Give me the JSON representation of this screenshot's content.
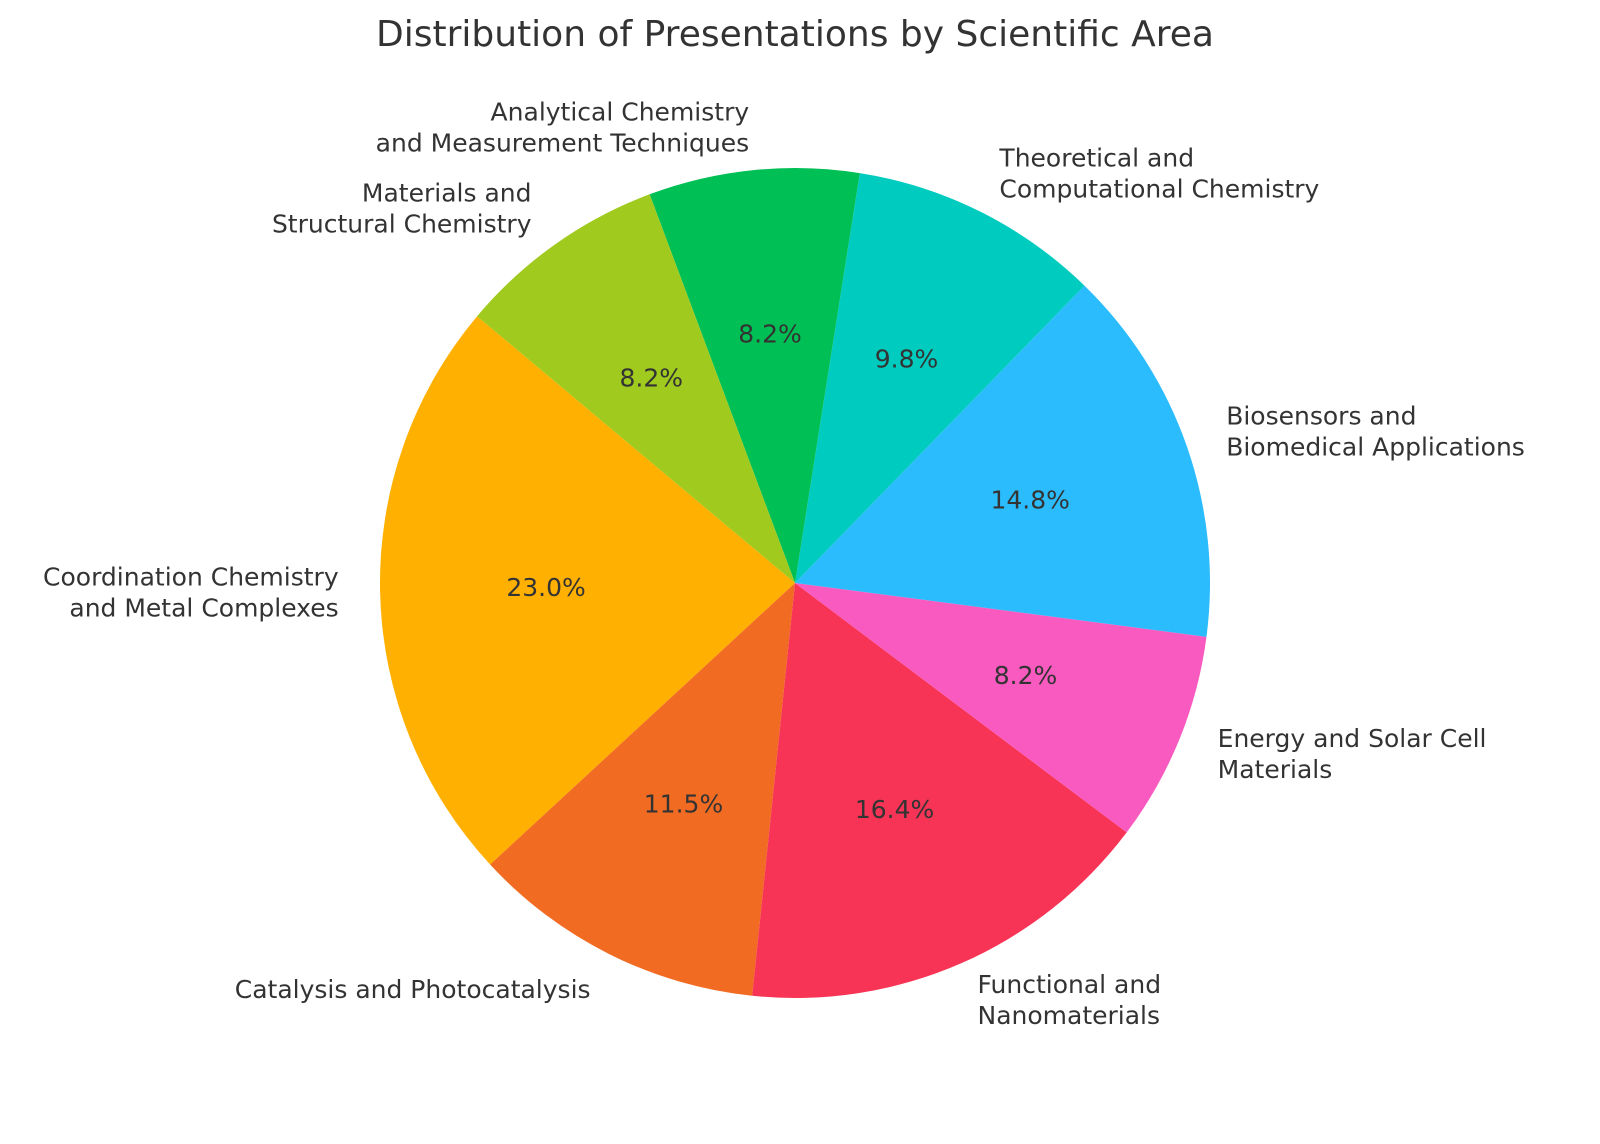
{
  "chart_data": {
    "type": "pie",
    "title": "Distribution of Presentations by Scientific Area",
    "categories": [
      "Coordination Chemistry\nand Metal Complexes",
      "Catalysis and Photocatalysis",
      "Functional and\nNanomaterials",
      "Energy and Solar Cell\nMaterials",
      "Biosensors and\nBiomedical Applications",
      "Theoretical and\nComputational Chemistry",
      "Analytical Chemistry\nand Measurement Techniques",
      "Materials and\nStructural Chemistry"
    ],
    "values": [
      23.0,
      11.5,
      16.4,
      8.2,
      14.8,
      9.8,
      8.2,
      8.2
    ],
    "value_labels": [
      "23.0%",
      "11.5%",
      "16.4%",
      "8.2%",
      "14.8%",
      "9.8%",
      "8.2%",
      "8.2%"
    ],
    "colors": [
      "#ffb000",
      "#f26b22",
      "#f73456",
      "#f85ac0",
      "#2bbcfe",
      "#00cbbf",
      "#00bf54",
      "#a0ca1e"
    ],
    "start_angle": 140,
    "direction": "counterclockwise"
  }
}
